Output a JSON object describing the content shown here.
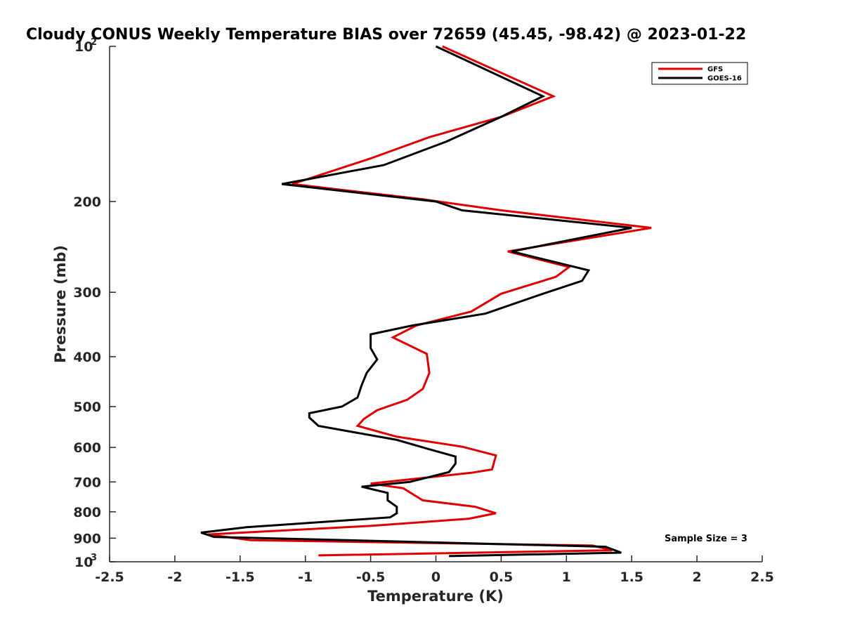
{
  "chart_data": {
    "type": "line",
    "title": "Cloudy CONUS Weekly Temperature BIAS over 72659 (45.45, -98.42) @ 2023-01-22",
    "xlabel": "Temperature (K)",
    "ylabel": "Pressure (mb)",
    "xlim": [
      -2.5,
      2.5
    ],
    "ylim": [
      100,
      1000
    ],
    "y_scale": "log",
    "y_reversed": true,
    "x_ticks": [
      "-2.5",
      "-2",
      "-1.5",
      "-1",
      "-0.5",
      "0",
      "0.5",
      "1",
      "1.5",
      "2",
      "2.5"
    ],
    "x_tick_values": [
      -2.5,
      -2,
      -1.5,
      -1,
      -0.5,
      0,
      0.5,
      1,
      1.5,
      2,
      2.5
    ],
    "y_ticks": [
      {
        "value": 100,
        "base": "10",
        "exp": "2",
        "label": ""
      },
      {
        "value": 200,
        "label": "200"
      },
      {
        "value": 300,
        "label": "300"
      },
      {
        "value": 400,
        "label": "400"
      },
      {
        "value": 500,
        "label": "500"
      },
      {
        "value": 600,
        "label": "600"
      },
      {
        "value": 700,
        "label": "700"
      },
      {
        "value": 800,
        "label": "800"
      },
      {
        "value": 900,
        "label": "900"
      },
      {
        "value": 1000,
        "base": "10",
        "exp": "3",
        "label": ""
      }
    ],
    "grid": false,
    "legend_position": "top-right",
    "annotation": "Sample Size = 3",
    "series": [
      {
        "name": "GFS",
        "color": "#e00000",
        "points": [
          [
            0.05,
            100
          ],
          [
            0.9,
            125
          ],
          [
            0.5,
            137
          ],
          [
            -0.05,
            150
          ],
          [
            -0.5,
            165
          ],
          [
            -1.1,
            185
          ],
          [
            -0.1,
            198
          ],
          [
            0.5,
            208
          ],
          [
            1.65,
            225
          ],
          [
            0.55,
            250
          ],
          [
            1.02,
            268
          ],
          [
            0.92,
            280
          ],
          [
            0.5,
            302
          ],
          [
            0.27,
            327
          ],
          [
            -0.15,
            348
          ],
          [
            -0.33,
            367
          ],
          [
            -0.07,
            395
          ],
          [
            -0.05,
            430
          ],
          [
            -0.1,
            462
          ],
          [
            -0.22,
            485
          ],
          [
            -0.45,
            508
          ],
          [
            -0.55,
            528
          ],
          [
            -0.6,
            545
          ],
          [
            -0.3,
            572
          ],
          [
            0.2,
            598
          ],
          [
            0.46,
            622
          ],
          [
            0.43,
            662
          ],
          [
            0.27,
            672
          ],
          [
            -0.5,
            705
          ],
          [
            -0.25,
            720
          ],
          [
            -0.1,
            760
          ],
          [
            0.3,
            782
          ],
          [
            0.46,
            805
          ],
          [
            0.25,
            825
          ],
          [
            -0.5,
            852
          ],
          [
            -1.75,
            885
          ],
          [
            -1.42,
            908
          ],
          [
            1.2,
            930
          ],
          [
            1.35,
            950
          ],
          [
            -0.9,
            972
          ]
        ]
      },
      {
        "name": "GOES-16",
        "color": "#000000",
        "points": [
          [
            0.0,
            100
          ],
          [
            0.82,
            125
          ],
          [
            0.5,
            137
          ],
          [
            0.08,
            153
          ],
          [
            -0.4,
            170
          ],
          [
            -1.18,
            185
          ],
          [
            0.0,
            200
          ],
          [
            0.2,
            208
          ],
          [
            1.5,
            225
          ],
          [
            0.58,
            250
          ],
          [
            1.17,
            272
          ],
          [
            1.12,
            285
          ],
          [
            0.82,
            302
          ],
          [
            0.38,
            330
          ],
          [
            -0.18,
            348
          ],
          [
            -0.5,
            362
          ],
          [
            -0.5,
            385
          ],
          [
            -0.45,
            405
          ],
          [
            -0.53,
            430
          ],
          [
            -0.57,
            455
          ],
          [
            -0.6,
            480
          ],
          [
            -0.72,
            500
          ],
          [
            -0.97,
            515
          ],
          [
            -0.97,
            525
          ],
          [
            -0.9,
            545
          ],
          [
            -0.3,
            580
          ],
          [
            -0.05,
            605
          ],
          [
            0.15,
            625
          ],
          [
            0.15,
            645
          ],
          [
            0.1,
            670
          ],
          [
            -0.2,
            700
          ],
          [
            -0.57,
            715
          ],
          [
            -0.37,
            735
          ],
          [
            -0.37,
            760
          ],
          [
            -0.3,
            782
          ],
          [
            -0.3,
            805
          ],
          [
            -0.35,
            820
          ],
          [
            -1.45,
            857
          ],
          [
            -1.8,
            878
          ],
          [
            -1.7,
            895
          ],
          [
            -0.9,
            905
          ],
          [
            1.3,
            935
          ],
          [
            1.42,
            960
          ],
          [
            0.1,
            975
          ]
        ]
      }
    ]
  }
}
